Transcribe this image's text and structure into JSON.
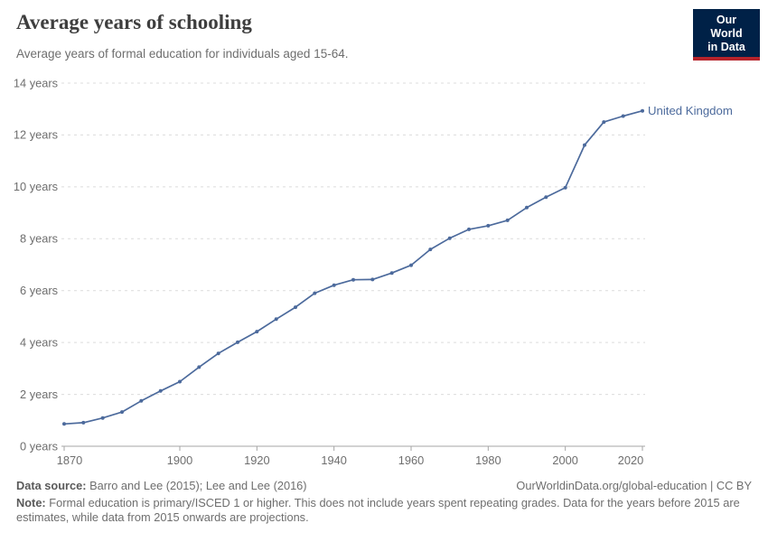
{
  "header": {
    "title": "Average years of schooling",
    "subtitle": "Average years of formal education for individuals aged 15-64.",
    "logo": {
      "line1": "Our World",
      "line2": "in Data"
    }
  },
  "chart_data": {
    "type": "line",
    "title": "Average years of schooling",
    "xlabel": "",
    "ylabel": "years",
    "xlim": [
      1870,
      2020
    ],
    "ylim": [
      0,
      14
    ],
    "x_ticks": [
      1870,
      1900,
      1920,
      1940,
      1960,
      1980,
      2000,
      2020
    ],
    "y_ticks": [
      0,
      2,
      4,
      6,
      8,
      10,
      12,
      14
    ],
    "y_tick_suffix": " years",
    "grid": "horizontal-dashed",
    "legend_position": "end-of-line-label",
    "series": [
      {
        "name": "United Kingdom",
        "color": "#4C6A9C",
        "x": [
          1870,
          1875,
          1880,
          1885,
          1890,
          1895,
          1900,
          1905,
          1910,
          1915,
          1920,
          1925,
          1930,
          1935,
          1940,
          1945,
          1950,
          1955,
          1960,
          1965,
          1970,
          1975,
          1980,
          1985,
          1990,
          1995,
          2000,
          2005,
          2010,
          2015,
          2020
        ],
        "values": [
          0.86,
          0.91,
          1.09,
          1.32,
          1.75,
          2.13,
          2.49,
          3.05,
          3.58,
          4.01,
          4.42,
          4.9,
          5.36,
          5.9,
          6.21,
          6.42,
          6.43,
          6.68,
          6.98,
          7.59,
          8.02,
          8.36,
          8.5,
          8.71,
          9.2,
          9.6,
          9.97,
          11.61,
          12.5,
          12.73,
          12.93
        ]
      }
    ]
  },
  "footer": {
    "source_label": "Data source:",
    "source_text": " Barro and Lee (2015); Lee and Lee (2016)",
    "link_text": "OurWorldinData.org/global-education | CC BY",
    "note_label": "Note:",
    "note_text": " Formal education is primary/ISCED 1 or higher. This does not include years spent repeating grades. Data for the years before 2015 are estimates, while data from 2015 onwards are projections."
  },
  "colors": {
    "line": "#4C6A9C",
    "grid": "#dcdcdc",
    "axis": "#a6a6a6",
    "text_gray": "#6e6e6e",
    "logo_bg": "#002147",
    "logo_red": "#b5232b"
  }
}
